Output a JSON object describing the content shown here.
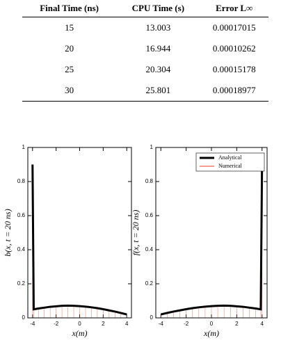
{
  "table": {
    "header": [
      "Final Time (ns)",
      "CPU Time (s)",
      "Error L∞"
    ],
    "rows": [
      [
        "15",
        "13.003",
        "0.00017015"
      ],
      [
        "20",
        "16.944",
        "0.00010262"
      ],
      [
        "25",
        "20.304",
        "0.00015178"
      ],
      [
        "30",
        "25.801",
        "0.00018977"
      ]
    ]
  },
  "chart_data": [
    {
      "type": "line",
      "xlabel": "x(m)",
      "ylabel": "b(x, t = 20 ns)",
      "x": [
        -4,
        -3.9,
        -3.5,
        -3,
        -2.5,
        -2,
        -1.5,
        -1,
        -0.5,
        0,
        0.5,
        1,
        1.5,
        2,
        2.5,
        3,
        3.5,
        4
      ],
      "series": [
        {
          "color": "#000000",
          "values": [
            0.9,
            0.05,
            0.055,
            0.06,
            0.065,
            0.068,
            0.071,
            0.072,
            0.071,
            0.069,
            0.066,
            0.062,
            0.057,
            0.051,
            0.044,
            0.037,
            0.029,
            0.02
          ]
        },
        {
          "color": "#e8391f",
          "values": [
            0.9,
            0.05,
            0.055,
            0.06,
            0.065,
            0.068,
            0.071,
            0.072,
            0.071,
            0.069,
            0.066,
            0.062,
            0.057,
            0.051,
            0.044,
            0.037,
            0.029,
            0.02
          ]
        }
      ],
      "xlim": [
        -4.4,
        4.4
      ],
      "xticks": [
        -4,
        -2,
        0,
        2,
        4
      ],
      "ylim": [
        0,
        1
      ],
      "yticks": [
        0,
        0.2,
        0.4,
        0.6,
        0.8,
        1
      ]
    },
    {
      "type": "line",
      "xlabel": "x(m)",
      "ylabel": "f(x, t = 20 ns)",
      "x": [
        -4,
        -3.5,
        -3,
        -2.5,
        -2,
        -1.5,
        -1,
        -0.5,
        0,
        0.5,
        1,
        1.5,
        2,
        2.5,
        3,
        3.5,
        3.9,
        4
      ],
      "series": [
        {
          "name": "Analytical",
          "color": "#000000",
          "values": [
            0.02,
            0.029,
            0.037,
            0.044,
            0.051,
            0.057,
            0.062,
            0.066,
            0.069,
            0.071,
            0.072,
            0.071,
            0.068,
            0.065,
            0.06,
            0.055,
            0.05,
            0.9
          ]
        },
        {
          "name": "Numerical",
          "color": "#e8391f",
          "values": [
            0.02,
            0.029,
            0.037,
            0.044,
            0.051,
            0.057,
            0.062,
            0.066,
            0.069,
            0.071,
            0.072,
            0.071,
            0.068,
            0.065,
            0.06,
            0.055,
            0.05,
            0.9
          ]
        }
      ],
      "xlim": [
        -4.4,
        4.4
      ],
      "xticks": [
        -4,
        -2,
        0,
        2,
        4
      ],
      "ylim": [
        0,
        1
      ],
      "yticks": [
        0,
        0.2,
        0.4,
        0.6,
        0.8,
        1
      ],
      "legend": "top-right"
    }
  ]
}
